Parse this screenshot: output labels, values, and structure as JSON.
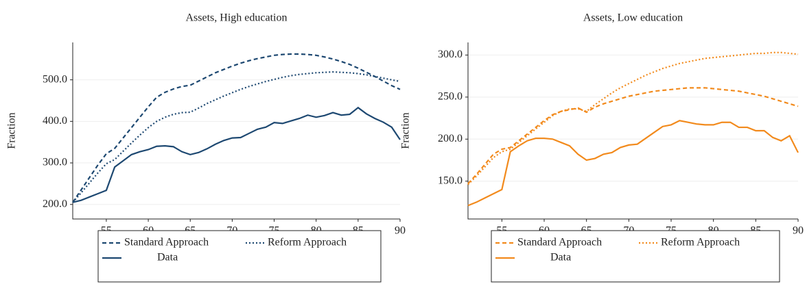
{
  "chart_data": [
    {
      "type": "line",
      "title": "Assets, High education",
      "ylabel": "Fraction",
      "x": [
        51,
        52,
        53,
        54,
        55,
        56,
        57,
        58,
        59,
        60,
        61,
        62,
        63,
        64,
        65,
        66,
        67,
        68,
        69,
        70,
        71,
        72,
        73,
        74,
        75,
        76,
        77,
        78,
        79,
        80,
        81,
        82,
        83,
        84,
        85,
        86,
        87,
        88,
        89,
        90
      ],
      "xlim": [
        51,
        90
      ],
      "xticks": [
        55,
        60,
        65,
        70,
        75,
        80,
        85,
        90
      ],
      "ylim": [
        165,
        590
      ],
      "yticks": [
        {
          "value": 200,
          "label": "200.0"
        },
        {
          "value": 300,
          "label": "300.0"
        },
        {
          "value": 400,
          "label": "400.0"
        },
        {
          "value": 500,
          "label": "500.0"
        }
      ],
      "grid": true,
      "legend": "bottom",
      "series": [
        {
          "name": "Standard Approach",
          "color": "#1d4871",
          "dash": "dashed",
          "values": [
            205,
            235,
            265,
            295,
            322,
            335,
            360,
            385,
            410,
            435,
            458,
            470,
            478,
            484,
            487,
            497,
            507,
            517,
            525,
            533,
            540,
            546,
            551,
            555,
            559,
            561,
            562,
            562,
            561,
            559,
            555,
            550,
            544,
            537,
            528,
            518,
            508,
            497,
            486,
            477
          ]
        },
        {
          "name": "Reform Approach",
          "color": "#1d4871",
          "dash": "dotted",
          "values": [
            205,
            228,
            252,
            276,
            298,
            308,
            328,
            348,
            367,
            385,
            400,
            410,
            417,
            421,
            422,
            432,
            443,
            452,
            461,
            469,
            477,
            484,
            490,
            496,
            501,
            506,
            510,
            513,
            515,
            517,
            518,
            519,
            518,
            517,
            515,
            512,
            508,
            504,
            500,
            496
          ]
        },
        {
          "name": "Data",
          "color": "#1d4871",
          "dash": "solid",
          "values": [
            205,
            210,
            218,
            226,
            234,
            290,
            305,
            320,
            327,
            332,
            340,
            341,
            339,
            327,
            320,
            325,
            334,
            345,
            354,
            360,
            361,
            371,
            381,
            386,
            397,
            395,
            401,
            407,
            415,
            410,
            414,
            421,
            415,
            417,
            433,
            418,
            407,
            398,
            386,
            356
          ]
        }
      ]
    },
    {
      "type": "line",
      "title": "Assets, Low education",
      "ylabel": "Fraction",
      "x": [
        51,
        52,
        53,
        54,
        55,
        56,
        57,
        58,
        59,
        60,
        61,
        62,
        63,
        64,
        65,
        66,
        67,
        68,
        69,
        70,
        71,
        72,
        73,
        74,
        75,
        76,
        77,
        78,
        79,
        80,
        81,
        82,
        83,
        84,
        85,
        86,
        87,
        88,
        89,
        90
      ],
      "xlim": [
        51,
        90
      ],
      "xticks": [
        55,
        60,
        65,
        70,
        75,
        80,
        85,
        90
      ],
      "ylim": [
        105,
        315
      ],
      "yticks": [
        {
          "value": 150,
          "label": "150.0"
        },
        {
          "value": 200,
          "label": "200.0"
        },
        {
          "value": 250,
          "label": "250.0"
        },
        {
          "value": 300,
          "label": "300.0"
        }
      ],
      "grid": true,
      "legend": "bottom",
      "series": [
        {
          "name": "Standard Approach",
          "color": "#f28a1c",
          "dash": "dashed",
          "values": [
            147,
            158,
            170,
            182,
            188,
            190,
            198,
            206,
            214,
            222,
            229,
            233,
            235,
            237,
            232,
            238,
            242,
            245,
            248,
            251,
            253,
            255,
            257,
            258,
            259,
            260,
            261,
            261,
            261,
            260,
            259,
            258,
            257,
            255,
            253,
            251,
            248,
            245,
            242,
            239
          ]
        },
        {
          "name": "Reform Approach",
          "color": "#f28a1c",
          "dash": "dotted",
          "values": [
            146,
            156,
            167,
            178,
            185,
            188,
            196,
            204,
            212,
            220,
            228,
            233,
            236,
            236,
            233,
            241,
            248,
            255,
            261,
            266,
            271,
            276,
            280,
            284,
            287,
            290,
            292,
            294,
            296,
            297,
            298,
            299,
            300,
            301,
            302,
            302,
            303,
            303,
            302,
            301
          ]
        },
        {
          "name": "Data",
          "color": "#f28a1c",
          "dash": "solid",
          "values": [
            121,
            125,
            130,
            135,
            140,
            185,
            192,
            198,
            201,
            201,
            200,
            196,
            192,
            182,
            175,
            177,
            182,
            184,
            190,
            193,
            194,
            201,
            208,
            215,
            217,
            222,
            220,
            218,
            217,
            217,
            220,
            220,
            214,
            214,
            210,
            210,
            202,
            198,
            204,
            184
          ]
        }
      ]
    }
  ]
}
